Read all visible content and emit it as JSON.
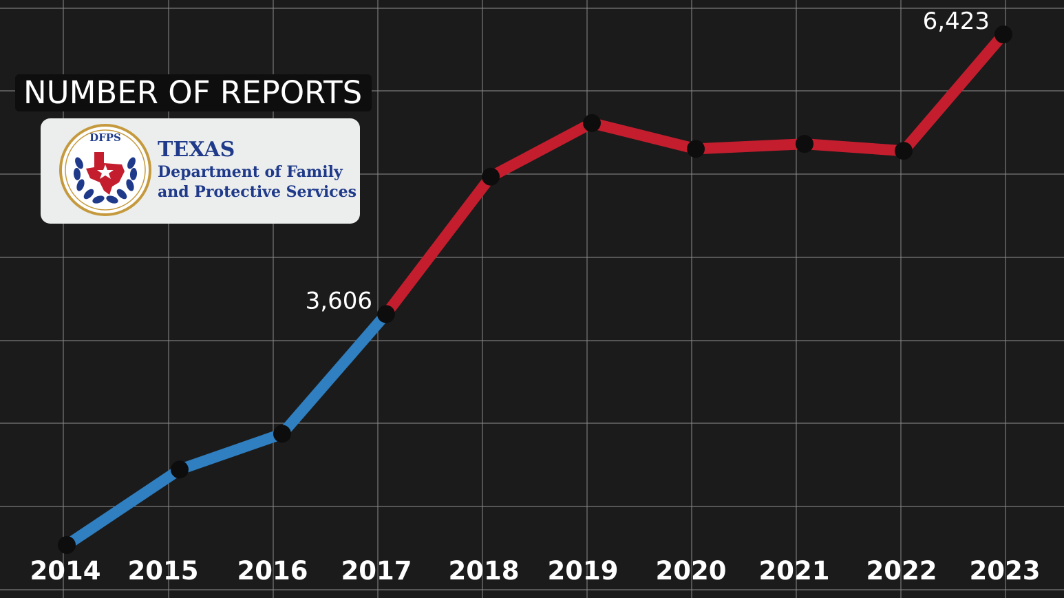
{
  "chart_data": {
    "type": "line",
    "title": "NUMBER OF REPORTS",
    "categories": [
      "2014",
      "2015",
      "2016",
      "2017",
      "2018",
      "2019",
      "2020",
      "2021",
      "2022",
      "2023"
    ],
    "series": [
      {
        "values": [
          1280,
          2040,
          2400,
          3606,
          4990,
          5530,
          5270,
          5320,
          5250,
          6423
        ]
      }
    ],
    "segment_colors": {
      "2014-2017": "#2f7fc1",
      "2017-2023": "#c41e2e"
    },
    "data_labels": [
      {
        "category": "2017",
        "text": "3,606"
      },
      {
        "category": "2023",
        "text": "6,423"
      }
    ],
    "grid": true,
    "legend": "none"
  },
  "logo": {
    "seal_text": "DFPS",
    "state": "TEXAS",
    "dept_line1": "Department of Family",
    "dept_line2": "and Protective Services"
  },
  "colors": {
    "background": "#1b1b1b",
    "grid": "#8a8a8a",
    "blue_line": "#2f7fc1",
    "red_line": "#c41e2e",
    "marker": "#0d0d0d",
    "text": "#ffffff"
  }
}
